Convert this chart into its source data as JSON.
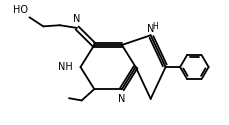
{
  "bg_color": "#ffffff",
  "line_color": "#000000",
  "line_width": 1.3,
  "font_size": 7.0,
  "figsize": [
    2.3,
    1.25
  ],
  "dpi": 100,
  "xlim": [
    0,
    10
  ],
  "ylim": [
    0,
    5.5
  ]
}
